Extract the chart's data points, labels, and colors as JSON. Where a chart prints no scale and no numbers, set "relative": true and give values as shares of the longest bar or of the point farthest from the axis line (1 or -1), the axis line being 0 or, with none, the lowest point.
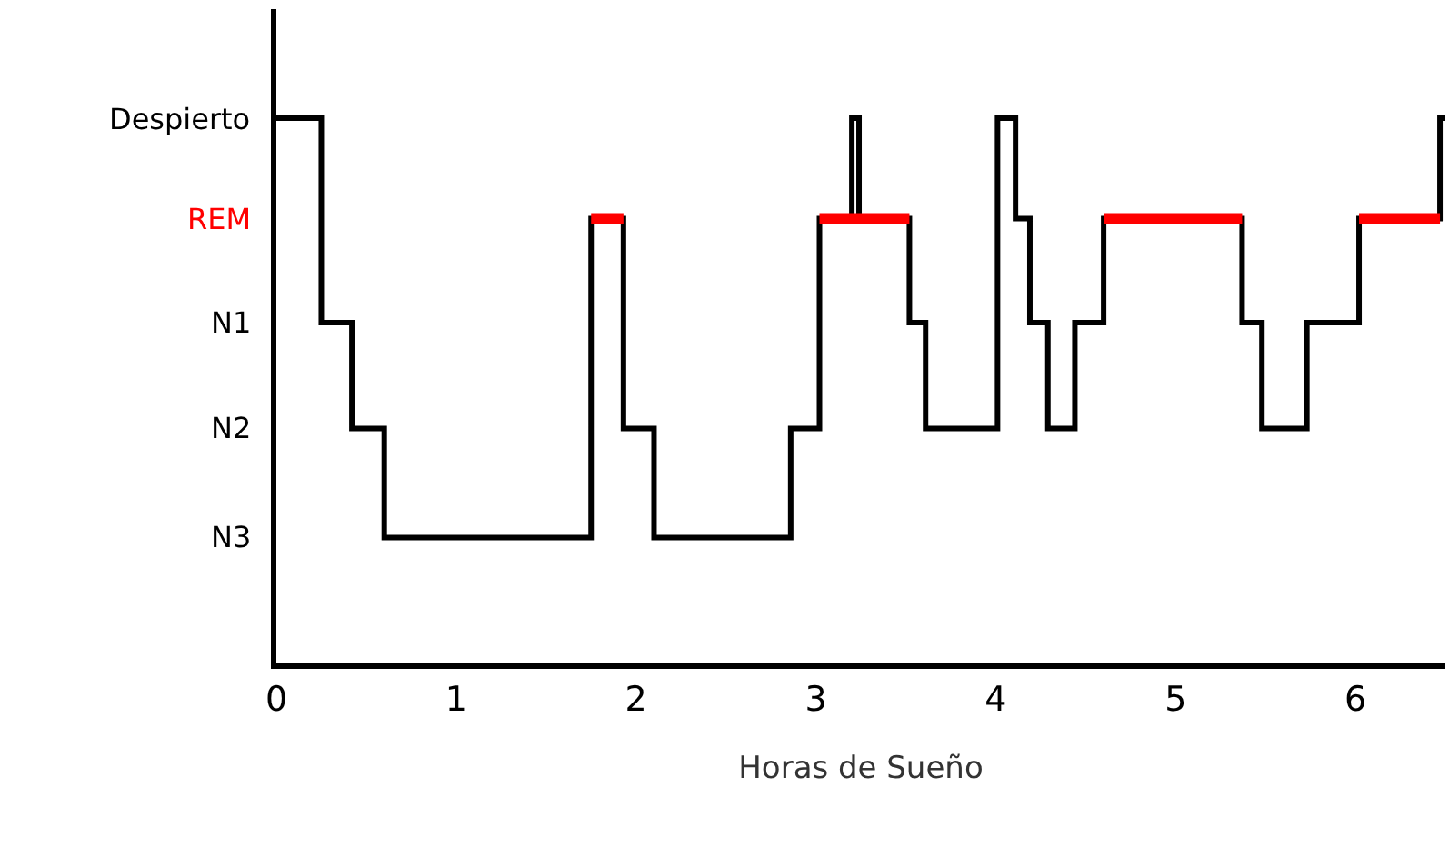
{
  "chart_data": {
    "type": "step",
    "xlabel": "Horas de Sueño",
    "relative": true,
    "x": [
      0,
      0.25,
      0.42,
      0.6,
      1.75,
      1.93,
      2.1,
      2.86,
      3.02,
      3.2,
      3.24,
      3.52,
      3.61,
      4.01,
      4.11,
      4.19,
      4.29,
      4.44,
      4.6,
      5.37,
      5.48,
      5.73,
      6.02,
      6.47,
      6.5
    ],
    "series": [
      {
        "color": "#000000",
        "values": [
          1,
          0.625,
          0.431,
          0.231,
          0.816,
          0.431,
          0.231,
          0.431,
          0.816,
          1,
          0.816,
          0.625,
          0.431,
          1,
          0.816,
          0.625,
          0.431,
          0.625,
          0.816,
          0.625,
          0.431,
          0.625,
          0.816,
          1,
          1
        ]
      },
      {
        "color": "#ff0000",
        "values": [
          null,
          null,
          null,
          null,
          0.816,
          0.816,
          null,
          null,
          0.816,
          0.816,
          0.816,
          0.816,
          null,
          null,
          null,
          null,
          null,
          null,
          0.816,
          0.816,
          null,
          null,
          0.816,
          0.816,
          null
        ]
      }
    ],
    "annotations": [
      "Despierto",
      "REM",
      "N1",
      "N2",
      "N3"
    ],
    "xlim": [
      0,
      6.5
    ],
    "xticks": [
      0,
      1,
      2,
      3,
      4,
      5,
      6
    ],
    "legend": false
  }
}
